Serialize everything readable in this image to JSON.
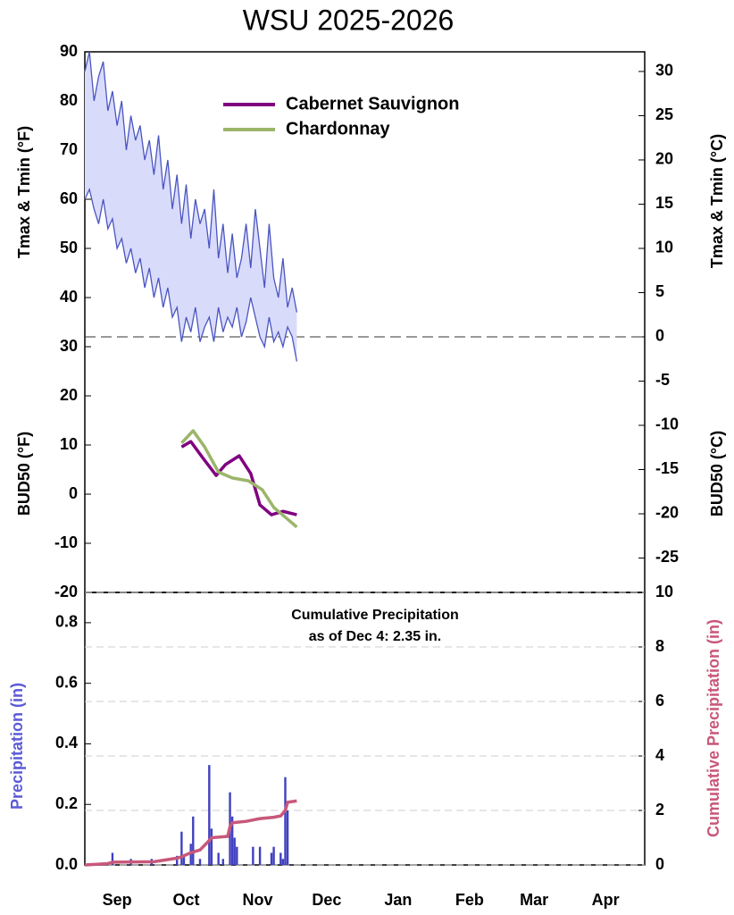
{
  "chart_data": [
    {
      "type": "line",
      "title": "WSU 2025-2026",
      "y_label_top": "Tmax & Tmin (°F)",
      "y_label_bottom": "BUD50 (°F)",
      "y2_label_top": "Tmax & Tmin (°C)",
      "y2_label_bottom": "BUD50 (°C)",
      "xlim": [
        0,
        243
      ],
      "ylim": [
        -20,
        90
      ],
      "yticks": [
        90,
        80,
        70,
        60,
        50,
        40,
        30,
        20,
        10,
        0,
        -10,
        -20
      ],
      "y2lim": [
        -28.89,
        32.22
      ],
      "y2ticks": [
        30,
        25,
        20,
        15,
        10,
        5,
        0,
        -5,
        -10,
        -15,
        -20,
        -25
      ],
      "temperature": {
        "color": "#4a55c0",
        "fill": "#d9dbfb",
        "x": [
          0,
          2,
          4,
          6,
          8,
          10,
          12,
          14,
          16,
          18,
          20,
          22,
          24,
          26,
          28,
          30,
          32,
          34,
          36,
          38,
          40,
          42,
          44,
          46,
          48,
          50,
          52,
          54,
          56,
          58,
          60,
          62,
          64,
          66,
          68,
          70,
          72,
          74,
          76,
          78,
          80,
          82,
          84,
          86,
          88,
          90,
          92
        ],
        "tmax": [
          86,
          90,
          80,
          85,
          88,
          78,
          82,
          75,
          80,
          70,
          77,
          72,
          75,
          68,
          72,
          65,
          73,
          62,
          68,
          58,
          65,
          55,
          63,
          52,
          60,
          55,
          58,
          50,
          62,
          48,
          55,
          45,
          53,
          44,
          48,
          55,
          46,
          58,
          50,
          42,
          55,
          44,
          40,
          48,
          38,
          42,
          37
        ],
        "tmin": [
          60,
          62,
          58,
          55,
          60,
          54,
          56,
          50,
          52,
          47,
          50,
          45,
          48,
          42,
          46,
          40,
          44,
          38,
          42,
          36,
          38,
          31,
          36,
          33,
          38,
          31,
          34,
          36,
          31,
          38,
          33,
          36,
          34,
          38,
          32,
          35,
          40,
          36,
          32,
          30,
          36,
          31,
          33,
          30,
          34,
          32,
          27
        ]
      },
      "series": [
        {
          "name": "Cabernet Sauvignon",
          "color": "#800080",
          "x": [
            42,
            46,
            51,
            57,
            61,
            67,
            72,
            76,
            81,
            86,
            92
          ],
          "values": [
            9.6,
            10.7,
            7.5,
            3.8,
            6,
            7.8,
            4.2,
            -2.2,
            -4.2,
            -3.5,
            -4.2
          ]
        },
        {
          "name": "Chardonnay",
          "color": "#9bb56a",
          "x": [
            42,
            47,
            52,
            58,
            64,
            71,
            77,
            82,
            92
          ],
          "values": [
            10.4,
            12.9,
            9.6,
            4.5,
            3.3,
            2.7,
            0.9,
            -2.7,
            -6.7
          ]
        }
      ],
      "legend": "upper center"
    },
    {
      "type": "bar",
      "annotation": [
        "Cumulative Precipitation",
        "as of Dec 4:  2.35 in."
      ],
      "y_label": "Precipitation (in)",
      "y_label_color": "#5b5bd6",
      "y2_label": "Cumulative Precipitation (in)",
      "y2_label_color": "#c8587a",
      "xlim": [
        0,
        243
      ],
      "xticks": [
        {
          "value": 14,
          "label": "Sep"
        },
        {
          "value": 44,
          "label": "Oct"
        },
        {
          "value": 75,
          "label": "Nov"
        },
        {
          "value": 105,
          "label": "Dec"
        },
        {
          "value": 136,
          "label": "Jan"
        },
        {
          "value": 167,
          "label": "Feb"
        },
        {
          "value": 195,
          "label": "Mar"
        },
        {
          "value": 226,
          "label": "Apr"
        }
      ],
      "ylim": [
        0,
        0.9
      ],
      "yticks": [
        {
          "value": 0,
          "label": "0.0"
        },
        0.2,
        0.4,
        0.6,
        0.8
      ],
      "y2lim": [
        0,
        10
      ],
      "y2ticks": [
        0,
        2,
        4,
        6,
        8,
        10
      ],
      "grid": true,
      "series": [
        {
          "color": "#4040c0",
          "x": [
            12,
            20,
            29,
            40,
            42,
            43,
            46,
            47,
            50,
            54,
            55,
            58,
            60,
            63,
            64,
            65,
            66,
            73,
            76,
            81,
            82,
            85,
            86,
            87,
            88
          ],
          "values": [
            0.04,
            0.02,
            0.02,
            0.03,
            0.11,
            0.03,
            0.07,
            0.16,
            0.02,
            0.33,
            0.12,
            0.04,
            0.02,
            0.24,
            0.16,
            0.09,
            0.06,
            0.06,
            0.06,
            0.04,
            0.06,
            0.04,
            0.02,
            0.29,
            0.18
          ]
        },
        {
          "axis": "y2",
          "color": "#c8587a",
          "x": [
            0,
            10,
            12,
            30,
            40,
            42,
            46,
            50,
            54,
            55,
            62,
            63,
            64,
            70,
            76,
            82,
            85,
            87,
            88,
            92
          ],
          "values": [
            0,
            0.05,
            0.1,
            0.12,
            0.25,
            0.3,
            0.45,
            0.55,
            0.9,
            1.0,
            1.05,
            1.4,
            1.55,
            1.6,
            1.7,
            1.75,
            1.8,
            2.0,
            2.3,
            2.35
          ]
        }
      ]
    }
  ]
}
